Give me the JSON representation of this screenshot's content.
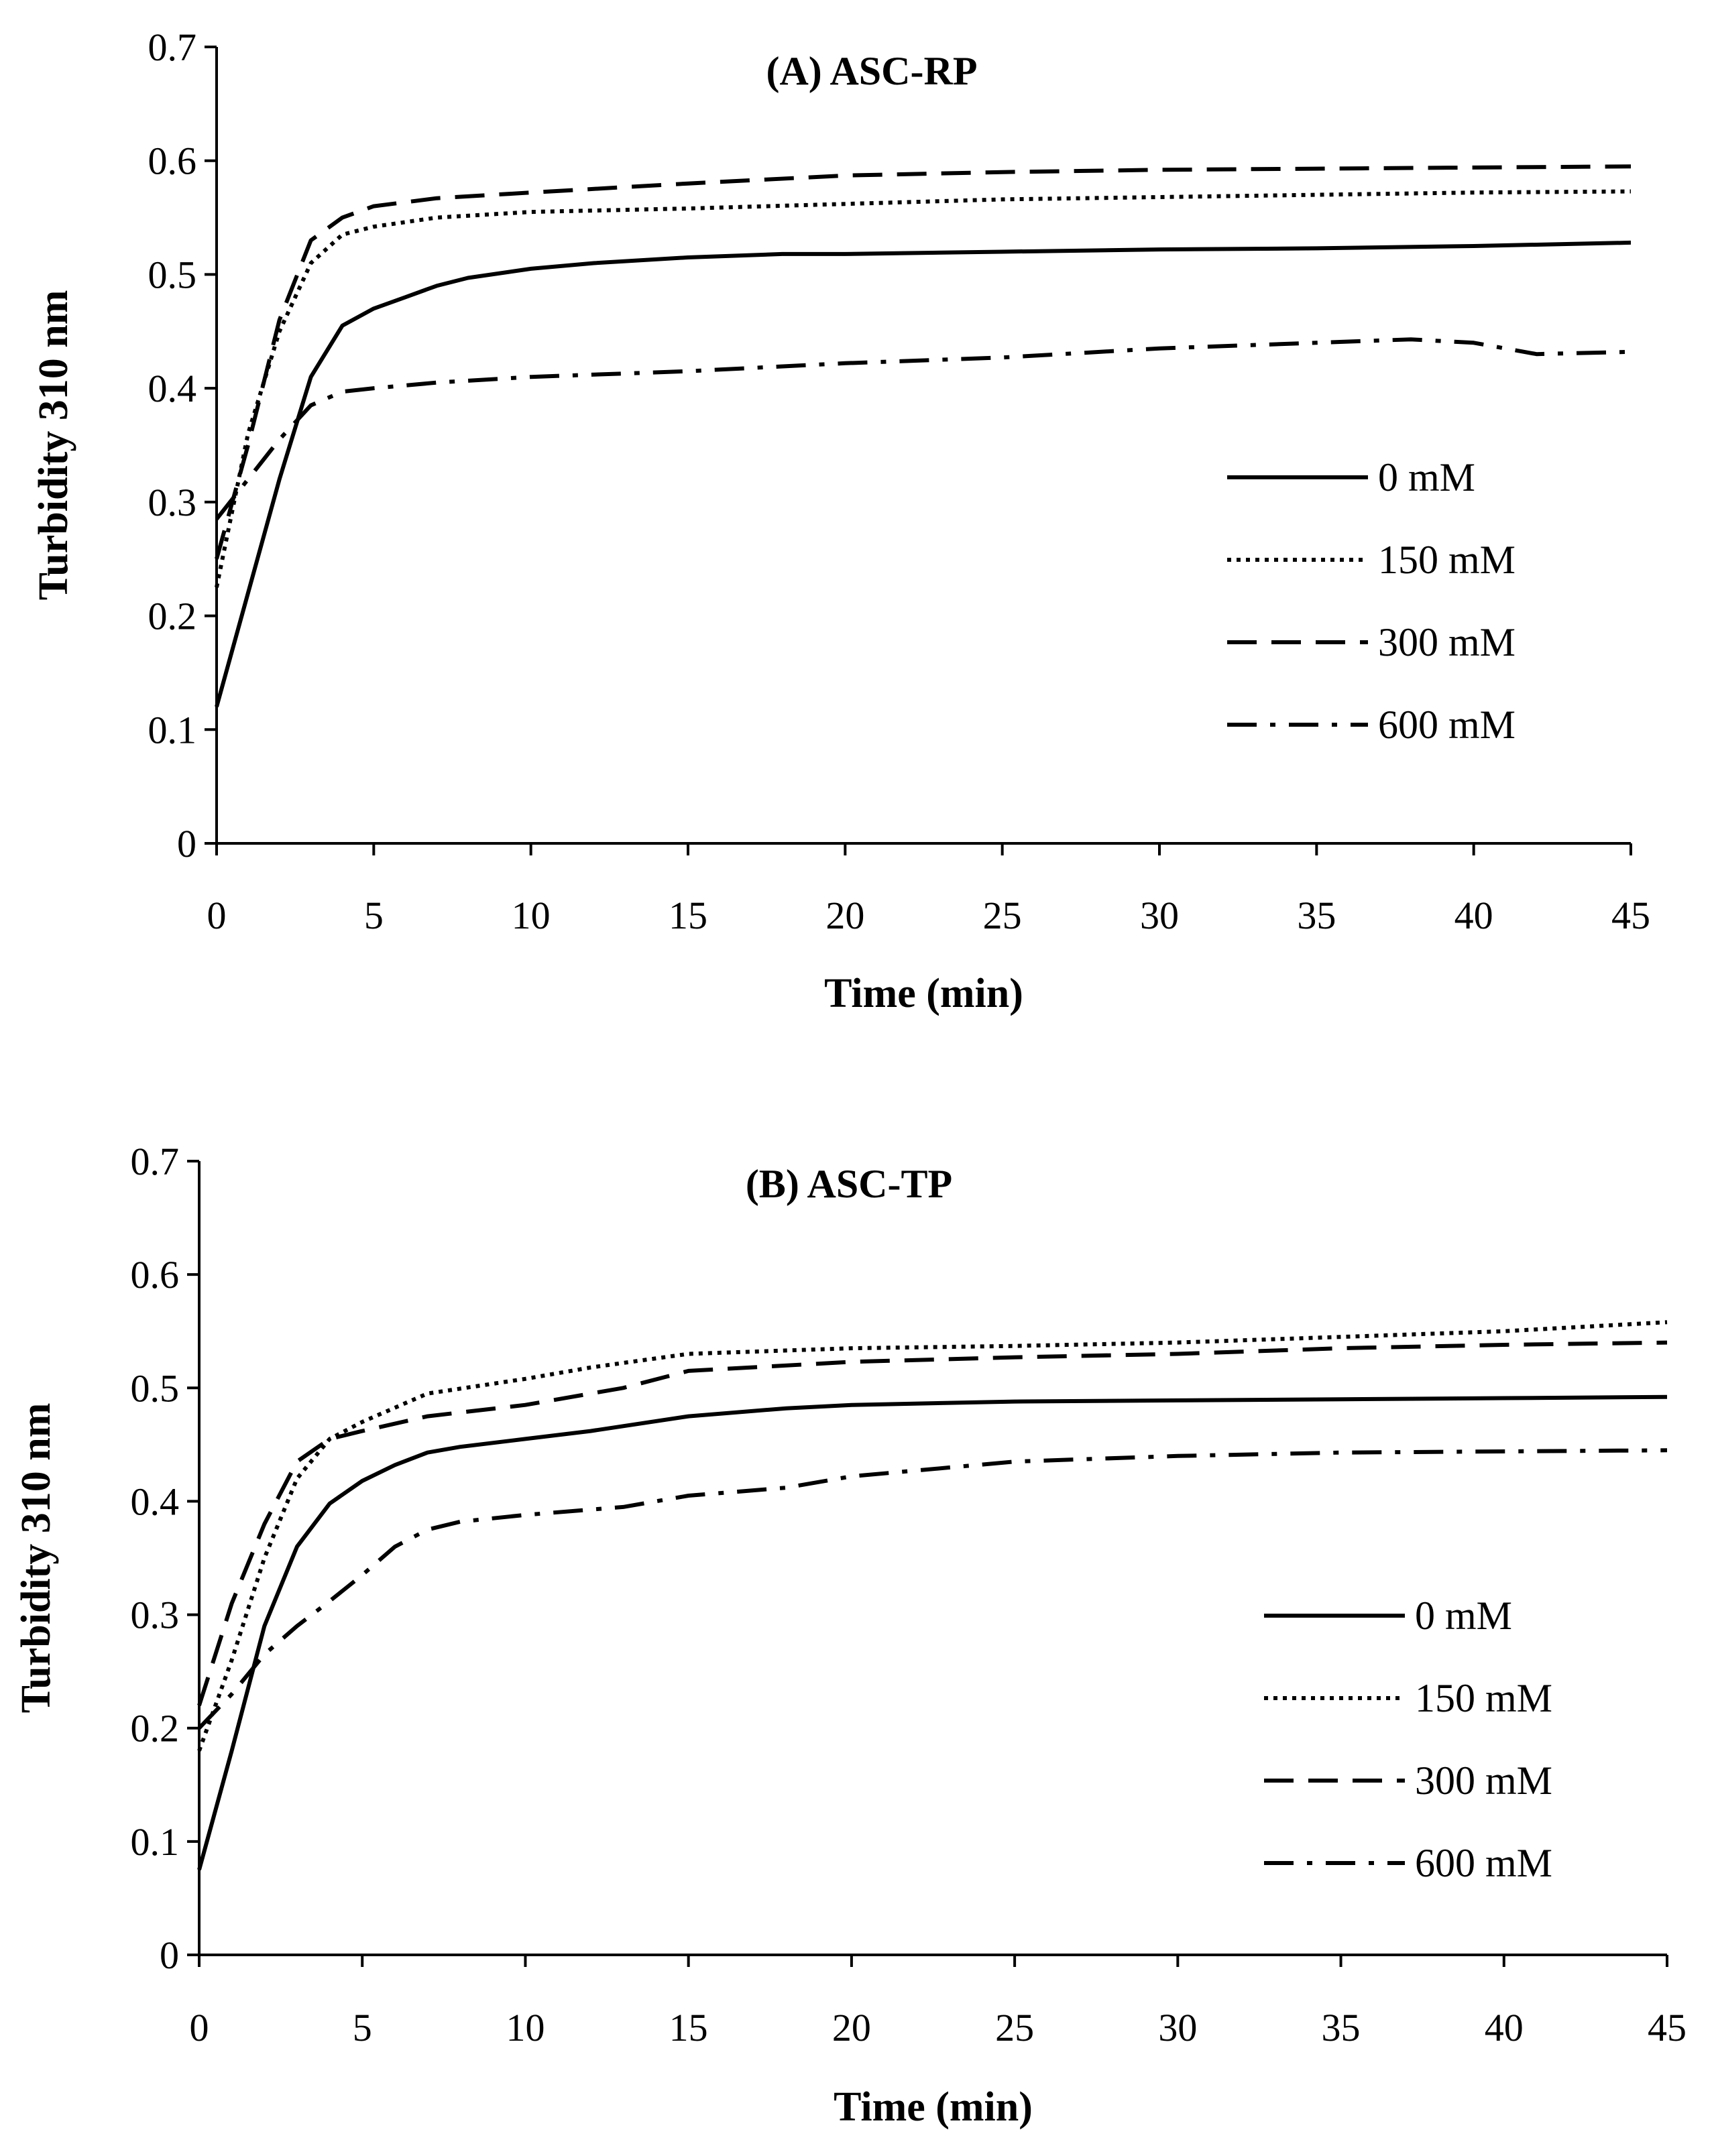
{
  "chart_data": [
    {
      "type": "line",
      "title": "(A) ASC-RP",
      "xlabel": "Time (min)",
      "ylabel": "Turbidity 310 nm",
      "xlim": [
        0,
        45
      ],
      "ylim": [
        0,
        0.7
      ],
      "xticks": [
        0,
        5,
        10,
        15,
        20,
        25,
        30,
        35,
        40,
        45
      ],
      "yticks": [
        0,
        0.1,
        0.2,
        0.3,
        0.4,
        0.5,
        0.6,
        0.7
      ],
      "legend_position": "right",
      "series": [
        {
          "name": "0 mM",
          "style": "solid",
          "x": [
            0,
            1,
            2,
            3,
            4,
            5,
            6,
            7,
            8,
            10,
            12,
            15,
            18,
            20,
            25,
            30,
            35,
            40,
            45
          ],
          "y": [
            0.12,
            0.22,
            0.32,
            0.41,
            0.455,
            0.47,
            0.48,
            0.49,
            0.497,
            0.505,
            0.51,
            0.515,
            0.518,
            0.518,
            0.52,
            0.522,
            0.523,
            0.525,
            0.528
          ]
        },
        {
          "name": "150 mM",
          "style": "dotted",
          "x": [
            0,
            1,
            2,
            3,
            4,
            5,
            7,
            10,
            15,
            20,
            25,
            30,
            35,
            40,
            45
          ],
          "y": [
            0.225,
            0.36,
            0.45,
            0.51,
            0.535,
            0.542,
            0.55,
            0.555,
            0.558,
            0.562,
            0.566,
            0.568,
            0.57,
            0.572,
            0.573
          ]
        },
        {
          "name": "300 mM",
          "style": "dashed",
          "x": [
            0,
            1,
            2,
            3,
            4,
            5,
            7,
            10,
            15,
            20,
            25,
            30,
            35,
            40,
            45
          ],
          "y": [
            0.25,
            0.35,
            0.46,
            0.53,
            0.55,
            0.56,
            0.567,
            0.572,
            0.58,
            0.587,
            0.59,
            0.592,
            0.593,
            0.594,
            0.595
          ]
        },
        {
          "name": "600 mM",
          "style": "dashdot",
          "x": [
            0,
            1,
            2,
            3,
            4,
            5,
            7,
            10,
            15,
            20,
            25,
            30,
            35,
            38,
            40,
            42,
            45
          ],
          "y": [
            0.285,
            0.32,
            0.355,
            0.385,
            0.397,
            0.4,
            0.405,
            0.41,
            0.415,
            0.422,
            0.427,
            0.435,
            0.44,
            0.443,
            0.44,
            0.43,
            0.432
          ]
        }
      ]
    },
    {
      "type": "line",
      "title": "(B) ASC-TP",
      "xlabel": "Time (min)",
      "ylabel": "Turbidity 310 nm",
      "xlim": [
        0,
        45
      ],
      "ylim": [
        0,
        0.7
      ],
      "xticks": [
        0,
        5,
        10,
        15,
        20,
        25,
        30,
        35,
        40,
        45
      ],
      "yticks": [
        0,
        0.1,
        0.2,
        0.3,
        0.4,
        0.5,
        0.6,
        0.7
      ],
      "legend_position": "right",
      "series": [
        {
          "name": "0 mM",
          "style": "solid",
          "x": [
            0,
            1,
            2,
            3,
            4,
            5,
            6,
            7,
            8,
            10,
            12,
            15,
            18,
            20,
            25,
            30,
            35,
            40,
            45
          ],
          "y": [
            0.075,
            0.18,
            0.29,
            0.36,
            0.398,
            0.418,
            0.432,
            0.443,
            0.448,
            0.455,
            0.462,
            0.475,
            0.482,
            0.485,
            0.488,
            0.489,
            0.49,
            0.491,
            0.492
          ]
        },
        {
          "name": "150 mM",
          "style": "dotted",
          "x": [
            0,
            1,
            2,
            3,
            4,
            5,
            7,
            10,
            12,
            15,
            20,
            25,
            30,
            35,
            40,
            45
          ],
          "y": [
            0.18,
            0.26,
            0.35,
            0.42,
            0.455,
            0.47,
            0.495,
            0.508,
            0.518,
            0.53,
            0.535,
            0.537,
            0.54,
            0.545,
            0.55,
            0.558
          ]
        },
        {
          "name": "300 mM",
          "style": "dashed",
          "x": [
            0,
            1,
            2,
            3,
            4,
            5,
            7,
            10,
            13,
            15,
            20,
            25,
            30,
            35,
            40,
            45
          ],
          "y": [
            0.22,
            0.31,
            0.38,
            0.435,
            0.455,
            0.462,
            0.475,
            0.485,
            0.5,
            0.515,
            0.523,
            0.527,
            0.53,
            0.535,
            0.538,
            0.54
          ]
        },
        {
          "name": "600 mM",
          "style": "dashdot",
          "x": [
            0,
            1,
            2,
            3,
            4,
            5,
            6,
            7,
            8,
            10,
            13,
            15,
            18,
            20,
            25,
            30,
            35,
            40,
            45
          ],
          "y": [
            0.2,
            0.23,
            0.265,
            0.29,
            0.312,
            0.335,
            0.36,
            0.375,
            0.382,
            0.388,
            0.395,
            0.405,
            0.412,
            0.422,
            0.435,
            0.44,
            0.443,
            0.444,
            0.445
          ]
        }
      ]
    }
  ]
}
